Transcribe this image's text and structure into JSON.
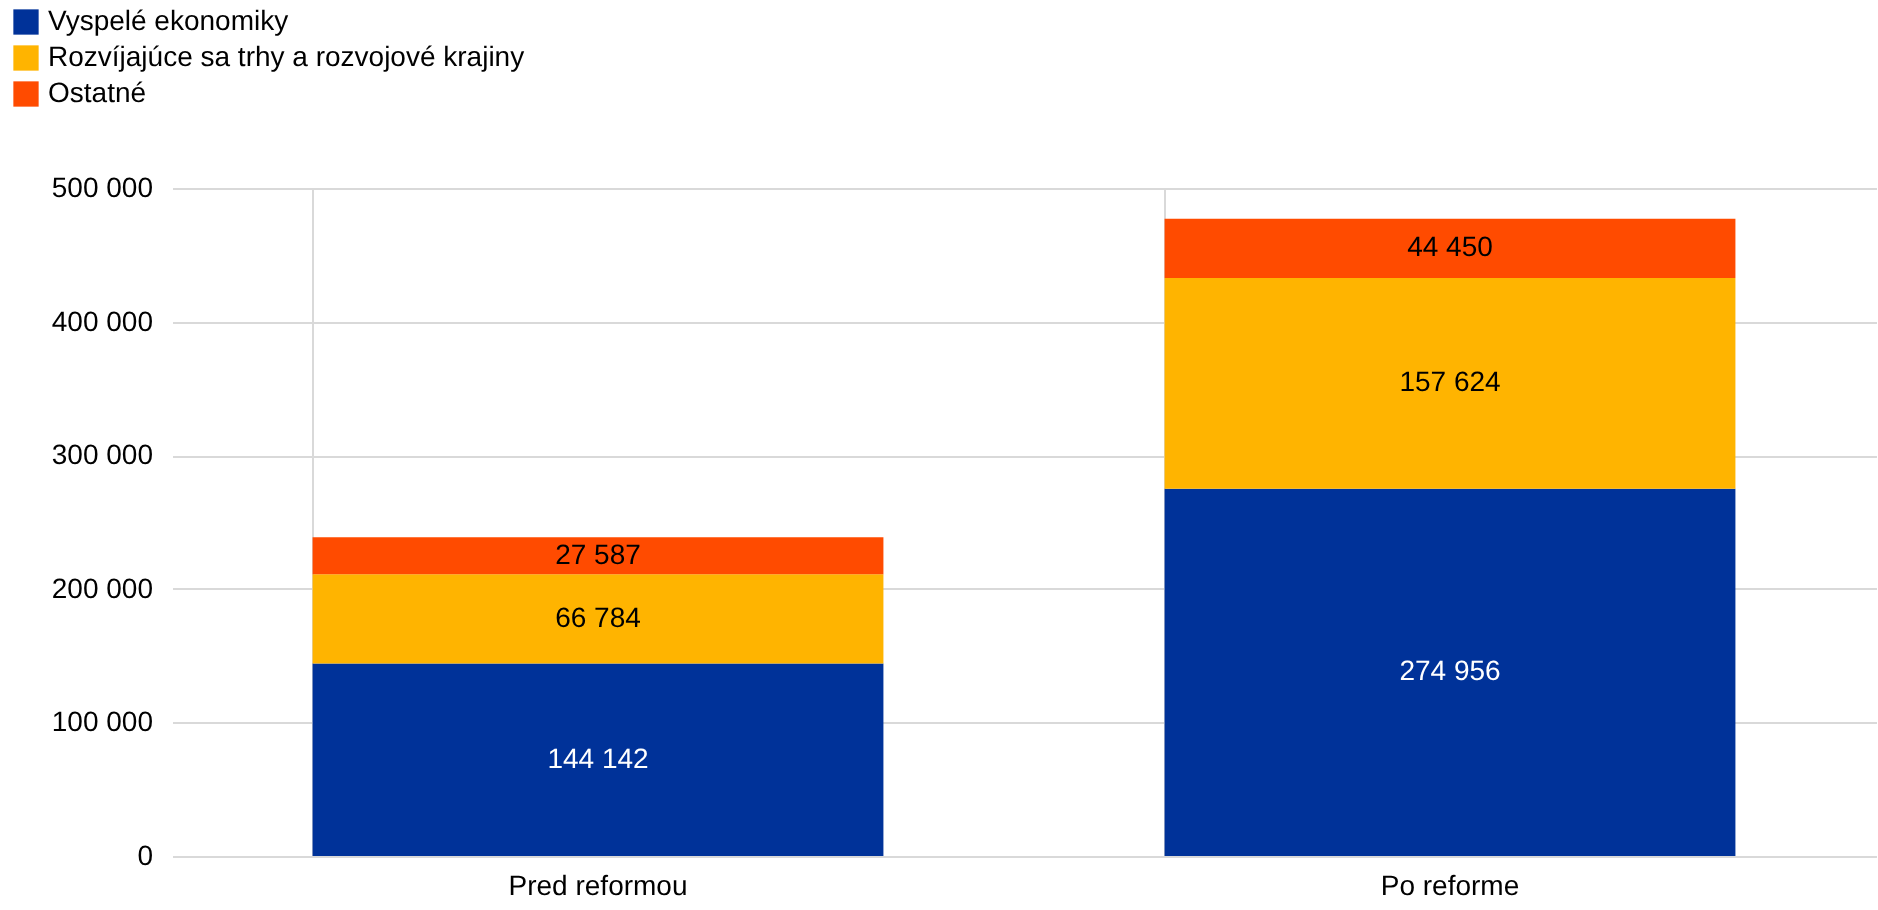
{
  "chart_data": {
    "type": "bar",
    "stacked": true,
    "categories": [
      "Pred reformou",
      "Po reforme"
    ],
    "series": [
      {
        "name": "Vyspelé ekonomiky",
        "color": "#003299",
        "values": [
          144142,
          274956
        ],
        "value_labels": [
          "144 142",
          "274 956"
        ]
      },
      {
        "name": "Rozvíjajúce sa  trhy a rozvojové krajiny",
        "color": "#ffb400",
        "values": [
          66784,
          157624
        ],
        "value_labels": [
          "66 784",
          "157 624"
        ]
      },
      {
        "name": "Ostatné",
        "color": "#ff4b00",
        "values": [
          27587,
          44450
        ],
        "value_labels": [
          "27 587",
          "44 450"
        ]
      }
    ],
    "ylim": [
      0,
      500000
    ],
    "yticks": [
      0,
      {
        "value": 100000,
        "label": "100 000"
      },
      {
        "value": 200000,
        "label": "200 000"
      },
      {
        "value": 300000,
        "label": "300 000"
      },
      {
        "value": 400000,
        "label": "400 000"
      },
      {
        "value": 500000,
        "label": "500 000"
      }
    ],
    "grid": true,
    "legend": "top left"
  }
}
